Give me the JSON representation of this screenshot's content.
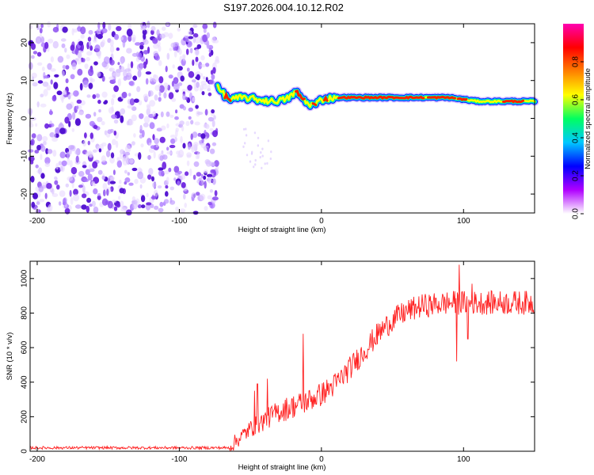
{
  "figure_title": "S197.2026.004.10.12.R02",
  "colors": {
    "line": "#ff2020",
    "axis": "#000000",
    "colorbar_stops": [
      "#ffffff",
      "#b000ff",
      "#0000ff",
      "#00c8ff",
      "#00ff60",
      "#ffff00",
      "#ff8000",
      "#ff0000",
      "#ff00b0"
    ]
  },
  "chart_data": [
    {
      "type": "heatmap",
      "name": "spectrogram",
      "xlabel": "Height of straight line (km)",
      "ylabel": "Frequency (Hz)",
      "xlim": [
        -205,
        150
      ],
      "ylim": [
        -25,
        25
      ],
      "xticks": [
        -200,
        -100,
        0,
        100
      ],
      "yticks": [
        -20,
        -10,
        0,
        10,
        20
      ],
      "noise_region_x": [
        -205,
        -73
      ],
      "carrier_line": {
        "x": [
          -73,
          -65,
          -55,
          -45,
          -35,
          -25,
          -18,
          -10,
          -5,
          0,
          10,
          30,
          60,
          90,
          110,
          150
        ],
        "freq": [
          8,
          5,
          5.5,
          5,
          4.5,
          5,
          7,
          4,
          3.5,
          5,
          5.5,
          5.5,
          5.5,
          5.5,
          4.5,
          4.5
        ]
      },
      "colorbar": {
        "label": "Normalized spectral amplitude",
        "range": [
          0,
          1
        ],
        "ticks": [
          "0.0",
          "0.2",
          "0.4",
          "0.6",
          "0.8"
        ]
      }
    },
    {
      "type": "line",
      "name": "snr",
      "xlabel": "Height of straight line (km)",
      "ylabel": "SNR (10 * v/v)",
      "xlim": [
        -205,
        150
      ],
      "ylim": [
        0,
        1100
      ],
      "xticks": [
        -200,
        -100,
        0,
        100
      ],
      "yticks": [
        0,
        200,
        400,
        600,
        800,
        1000
      ],
      "trend": {
        "x": [
          -205,
          -65,
          -60,
          -50,
          -40,
          -30,
          -20,
          -10,
          0,
          10,
          20,
          30,
          40,
          50,
          60,
          70,
          80,
          90,
          100,
          110,
          120,
          130,
          140,
          150
        ],
        "y": [
          20,
          20,
          60,
          130,
          180,
          230,
          260,
          290,
          330,
          390,
          480,
          580,
          680,
          760,
          810,
          840,
          850,
          860,
          860,
          860,
          860,
          860,
          860,
          860
        ]
      },
      "noise_amplitude": [
        {
          "x_from": -205,
          "x_to": -65,
          "amp": 8
        },
        {
          "x_from": -65,
          "x_to": 150,
          "amp": 70
        }
      ],
      "spikes": [
        {
          "x": -13,
          "y": 680
        },
        {
          "x": -45,
          "y": 390
        },
        {
          "x": -38,
          "y": 420
        },
        {
          "x": -47,
          "y": 350
        },
        {
          "x": 97,
          "y": 1080
        },
        {
          "x": 95,
          "y": 520
        },
        {
          "x": 106,
          "y": 970
        },
        {
          "x": 103,
          "y": 650
        }
      ]
    }
  ]
}
